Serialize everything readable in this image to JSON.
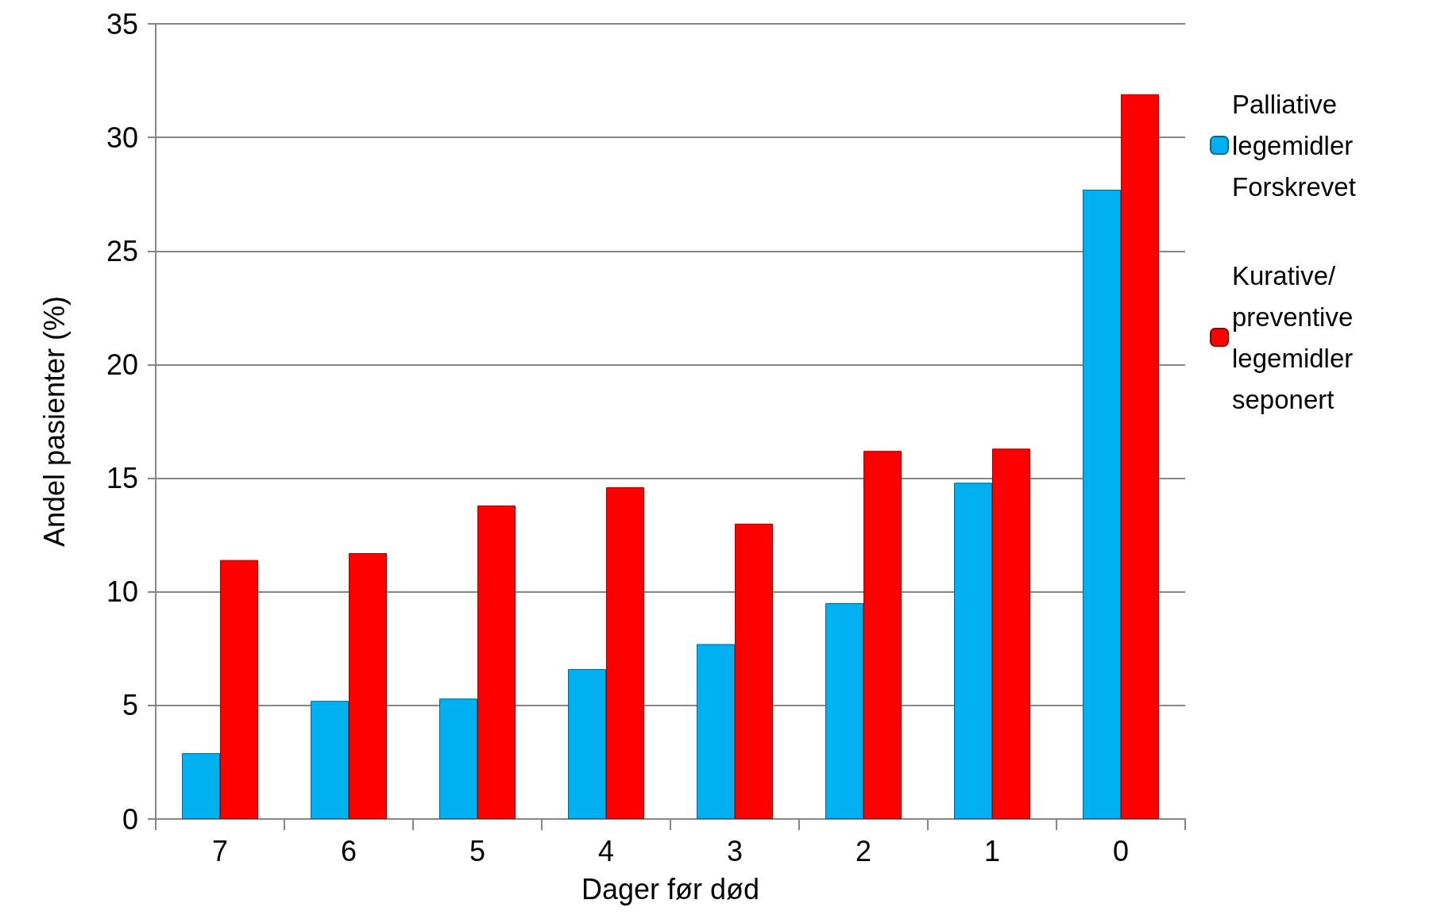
{
  "chart_data": {
    "type": "bar",
    "xlabel": "Dager før død",
    "ylabel": "Andel pasienter (%)",
    "categories": [
      "7",
      "6",
      "5",
      "4",
      "3",
      "2",
      "1",
      "0"
    ],
    "series": [
      {
        "name": "Palliative legemidler Forskrevet",
        "color": "#00b0f0",
        "values": [
          2.9,
          5.2,
          5.3,
          6.6,
          7.7,
          9.5,
          14.8,
          27.7
        ]
      },
      {
        "name": "Kurative/preventive legemidler seponert",
        "color": "#ff0000",
        "values": [
          11.4,
          11.7,
          13.8,
          14.6,
          13.0,
          16.2,
          16.3,
          31.9
        ]
      }
    ],
    "ylim": [
      0,
      35
    ],
    "yticks": [
      0,
      5,
      10,
      15,
      20,
      25,
      30,
      35
    ],
    "grid": "y",
    "legend": "right"
  }
}
